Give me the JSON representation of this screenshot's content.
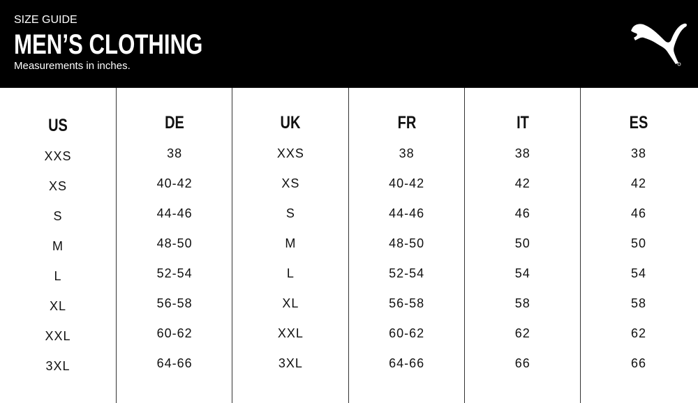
{
  "header": {
    "kicker": "SIZE GUIDE",
    "title": "MEN’S CLOTHING",
    "subtitle": "Measurements in inches.",
    "logo": "PUMA",
    "background": "#000000"
  },
  "table": {
    "columns": [
      {
        "label": "US",
        "values": [
          "XXS",
          "XS",
          "S",
          "M",
          "L",
          "XL",
          "XXL",
          "3XL"
        ]
      },
      {
        "label": "DE",
        "values": [
          "38",
          "40-42",
          "44-46",
          "48-50",
          "52-54",
          "56-58",
          "60-62",
          "64-66"
        ]
      },
      {
        "label": "UK",
        "values": [
          "XXS",
          "XS",
          "S",
          "M",
          "L",
          "XL",
          "XXL",
          "3XL"
        ]
      },
      {
        "label": "FR",
        "values": [
          "38",
          "40-42",
          "44-46",
          "48-50",
          "52-54",
          "56-58",
          "60-62",
          "64-66"
        ]
      },
      {
        "label": "IT",
        "values": [
          "38",
          "42",
          "46",
          "50",
          "54",
          "58",
          "62",
          "66"
        ]
      },
      {
        "label": "ES",
        "values": [
          "38",
          "42",
          "46",
          "50",
          "54",
          "58",
          "62",
          "66"
        ]
      }
    ]
  }
}
